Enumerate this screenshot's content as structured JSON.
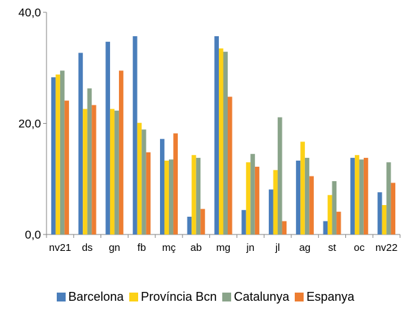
{
  "chart_data": {
    "type": "bar",
    "categories": [
      "nv21",
      "ds",
      "gn",
      "fb",
      "mç",
      "ab",
      "mg",
      "jn",
      "jl",
      "ag",
      "st",
      "oc",
      "nv22"
    ],
    "series": [
      {
        "name": "Barcelona",
        "color": "#4a7ebb",
        "values": [
          28.3,
          32.7,
          34.7,
          35.7,
          17.2,
          3.2,
          35.7,
          4.4,
          8.1,
          13.3,
          2.4,
          13.8,
          7.6
        ]
      },
      {
        "name": "Província Bcn",
        "color": "#fcd116",
        "values": [
          28.8,
          22.6,
          22.6,
          20.1,
          13.3,
          14.3,
          33.5,
          13.0,
          11.6,
          16.7,
          7.1,
          14.3,
          5.3
        ]
      },
      {
        "name": "Catalunya",
        "color": "#8aa48a",
        "values": [
          29.5,
          26.3,
          22.3,
          18.9,
          13.5,
          13.8,
          32.9,
          14.5,
          21.1,
          13.8,
          9.6,
          13.5,
          13.0
        ]
      },
      {
        "name": "Espanya",
        "color": "#ed7d31",
        "values": [
          24.1,
          23.3,
          29.5,
          14.8,
          18.2,
          4.6,
          24.8,
          12.2,
          2.4,
          10.5,
          4.1,
          13.8,
          9.3
        ]
      }
    ],
    "ylim": [
      0,
      40
    ],
    "yticks": [
      "0,0",
      "20,0",
      "40,0"
    ],
    "grid": false,
    "legend_position": "bottom"
  }
}
